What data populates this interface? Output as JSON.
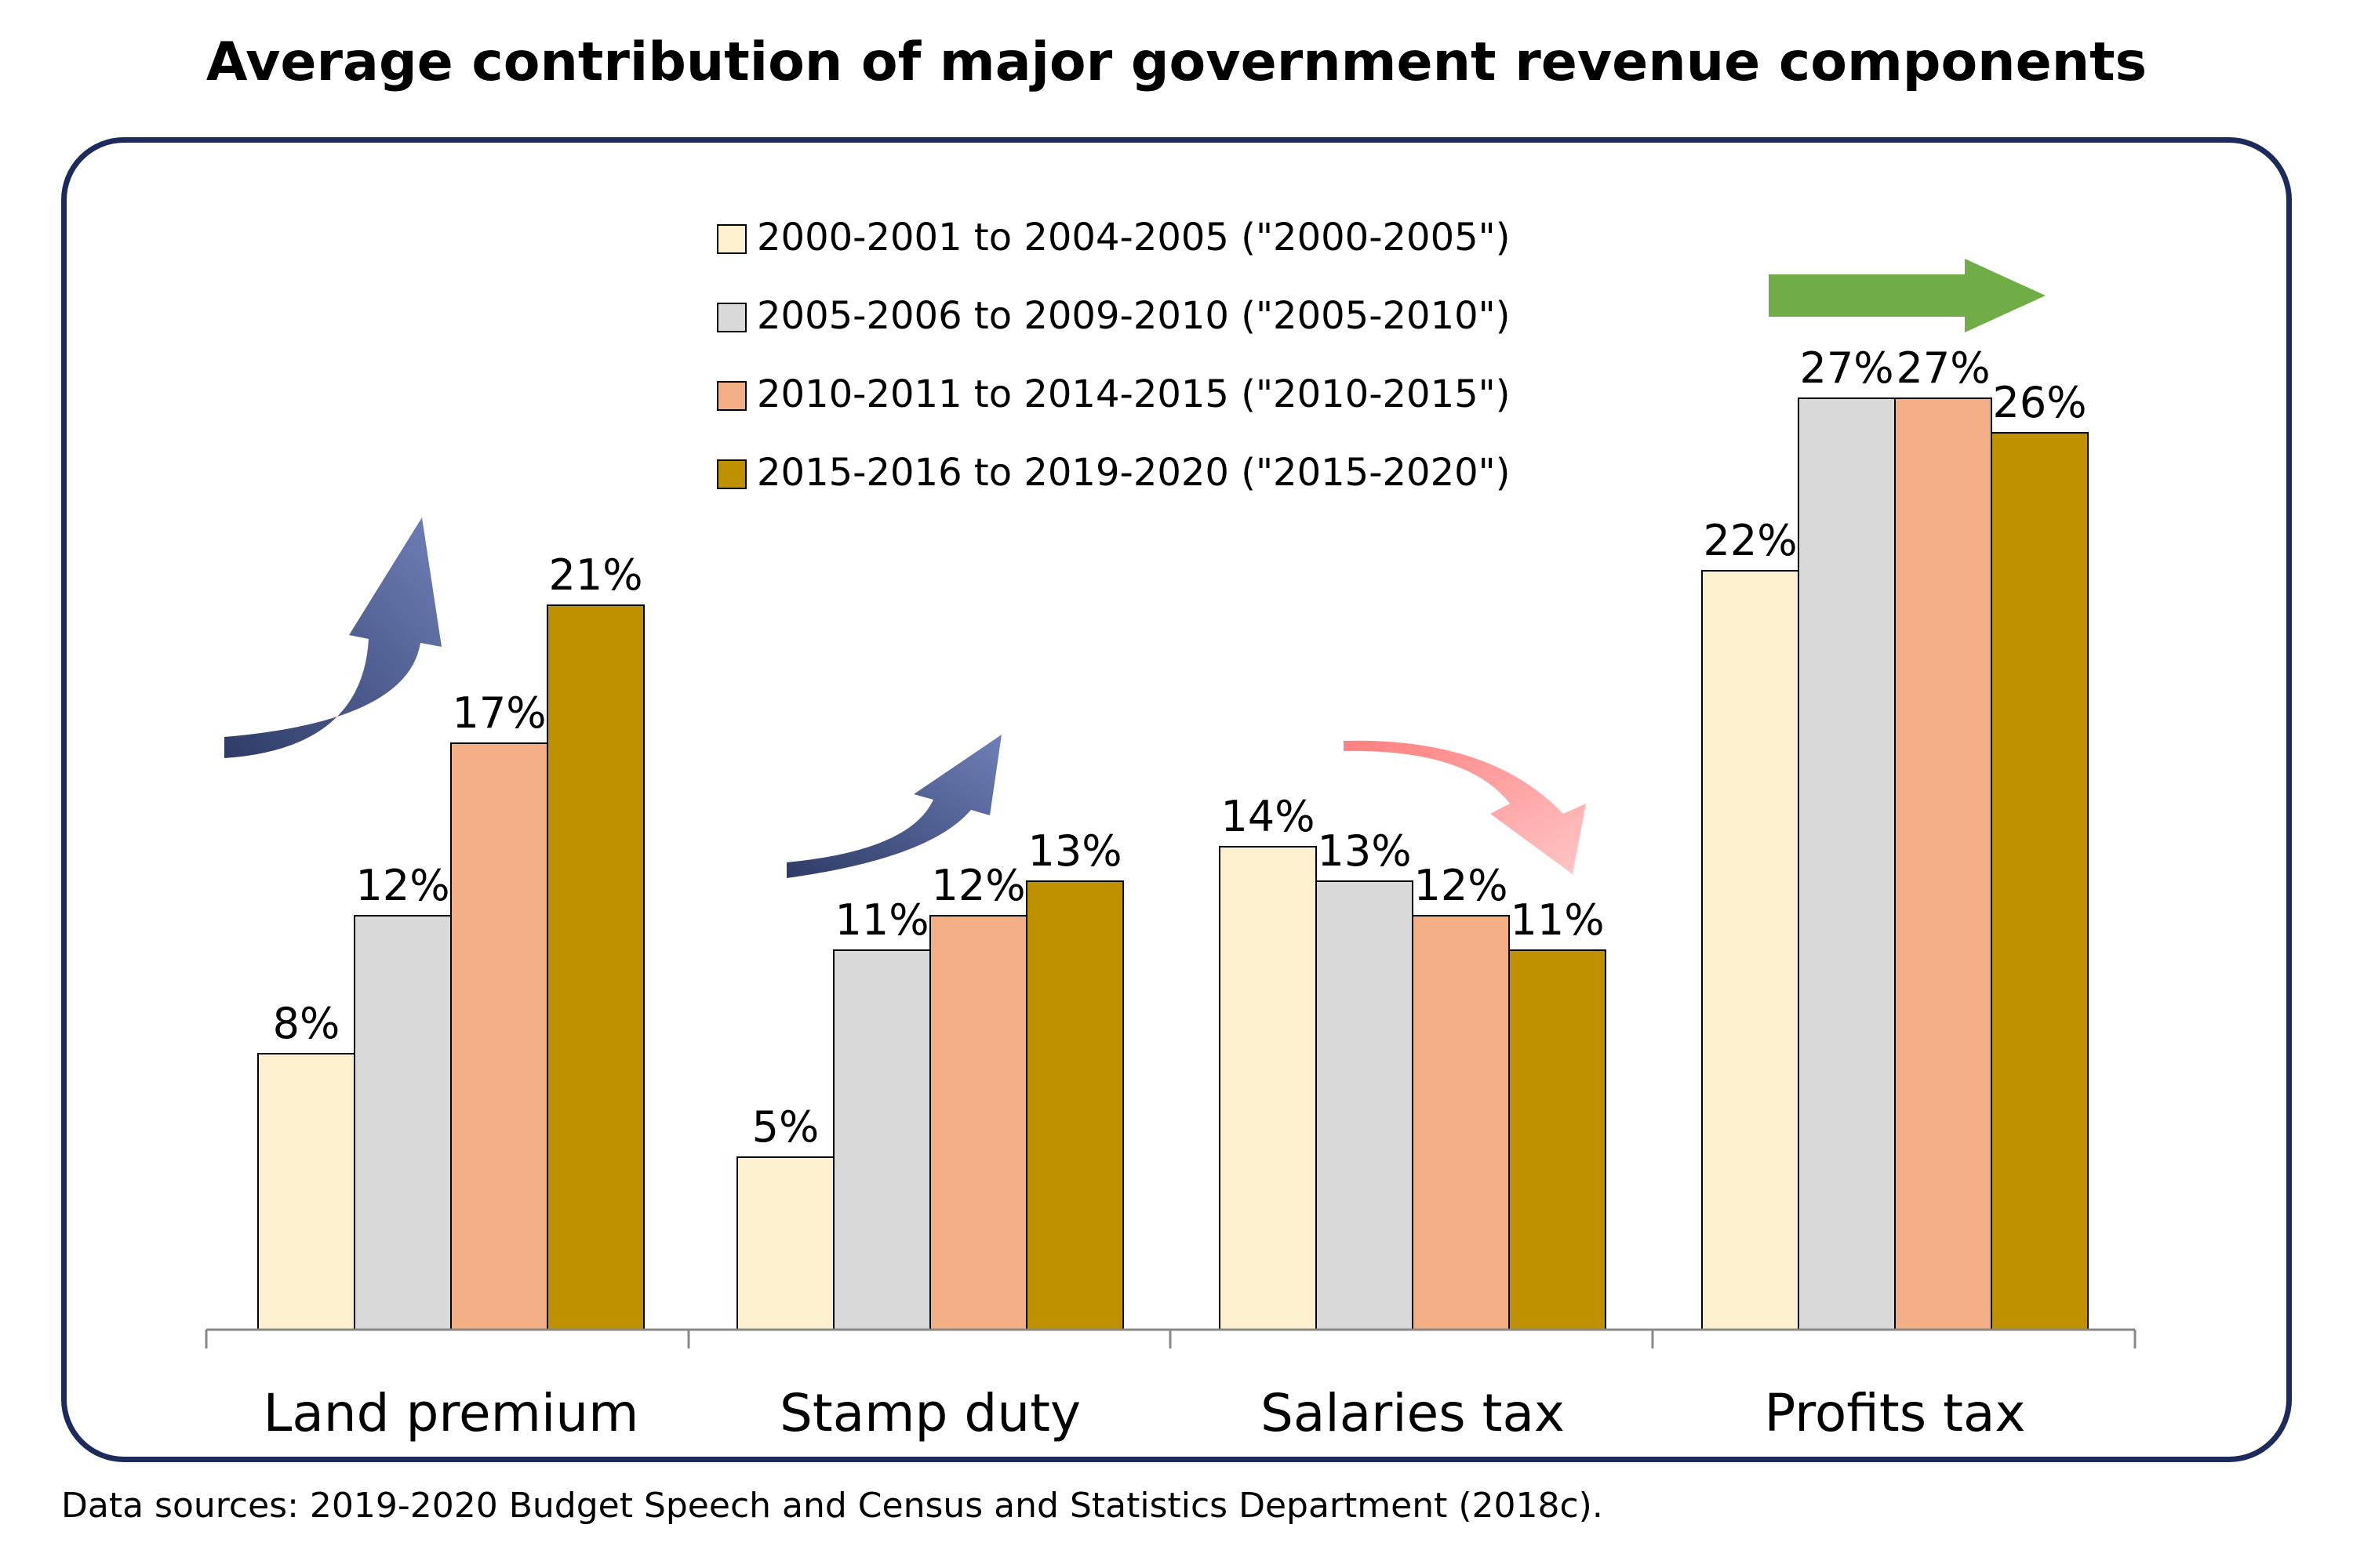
{
  "title": "Average contribution of major government revenue components",
  "source": "Data sources:  2019-2020 Budget Speech and Census and Statistics Department (2018c).",
  "chart_data": {
    "type": "bar",
    "title": "Average contribution of major government revenue components",
    "xlabel": "",
    "ylabel": "",
    "ylim": [
      0,
      30
    ],
    "categories": [
      "Land premium",
      "Stamp duty",
      "Salaries tax",
      "Profits tax"
    ],
    "series": [
      {
        "name": "2000-2001 to 2004-2005 (\"2000-2005\")",
        "color": "#fdf0ce",
        "values": [
          8,
          5,
          14,
          22
        ]
      },
      {
        "name": "2005-2006 to 2009-2010 (\"2005-2010\")",
        "color": "#d9d9d9",
        "values": [
          12,
          11,
          13,
          27
        ]
      },
      {
        "name": "2010-2011 to 2014-2015 (\"2010-2015\")",
        "color": "#f2ae85",
        "values": [
          17,
          12,
          12,
          27
        ]
      },
      {
        "name": "2015-2016 to 2019-2020 (\"2015-2020\")",
        "color": "#bf9000",
        "values": [
          21,
          13,
          11,
          26
        ]
      }
    ],
    "data_labels": [
      [
        "8%",
        "5%",
        "14%",
        "22%"
      ],
      [
        "12%",
        "11%",
        "13%",
        "27%"
      ],
      [
        "17%",
        "12%",
        "12%",
        "27%"
      ],
      [
        "21%",
        "13%",
        "11%",
        "26%"
      ]
    ],
    "legend_position": "top-center",
    "trend_arrows": [
      {
        "category": "Land premium",
        "direction": "up",
        "color": "#5b6b9c"
      },
      {
        "category": "Stamp duty",
        "direction": "up",
        "color": "#5b6b9c"
      },
      {
        "category": "Salaries tax",
        "direction": "down",
        "color": "#f26b6b"
      },
      {
        "category": "Profits tax",
        "direction": "flat",
        "color": "#70ad47"
      }
    ]
  }
}
